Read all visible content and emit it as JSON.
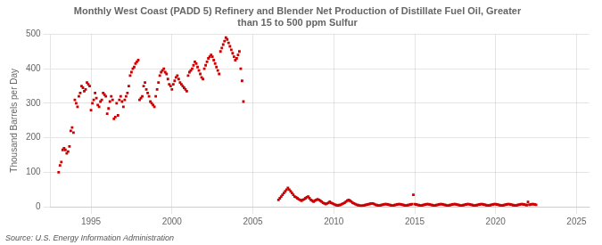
{
  "chart_data": {
    "type": "scatter",
    "title": "Monthly West Coast (PADD 5) Refinery and Blender Net Production of Distillate Fuel Oil, Greater\nthan 15 to 500 ppm Sulfur",
    "ylabel": "Thousand Barrels per Day",
    "source": "Source: U.S. Energy Information Administration",
    "xlim": [
      1992.5,
      2025.8
    ],
    "xticks": [
      1995,
      2000,
      2005,
      2010,
      2015,
      2020,
      2025
    ],
    "ylim": [
      0,
      500
    ],
    "yticks": [
      0,
      100,
      200,
      300,
      400,
      500
    ],
    "grid": true,
    "marker": "square",
    "series": [
      {
        "color": "#cc0000",
        "x": [
          1993,
          1993.0833,
          1993.1667,
          1993.25,
          1993.3333,
          1993.4167,
          1993.5,
          1993.5833,
          1993.6667,
          1993.75,
          1993.8333,
          1993.9167,
          1994,
          1994.0833,
          1994.1667,
          1994.25,
          1994.3333,
          1994.4167,
          1994.5,
          1994.5833,
          1994.6667,
          1994.75,
          1994.8333,
          1994.9167,
          1995,
          1995.0833,
          1995.1667,
          1995.25,
          1995.3333,
          1995.4167,
          1995.5,
          1995.5833,
          1995.6667,
          1995.75,
          1995.8333,
          1995.9167,
          1996,
          1996.0833,
          1996.1667,
          1996.25,
          1996.3333,
          1996.4167,
          1996.5,
          1996.5833,
          1996.6667,
          1996.75,
          1996.8333,
          1996.9167,
          1997,
          1997.0833,
          1997.1667,
          1997.25,
          1997.3333,
          1997.4167,
          1997.5,
          1997.5833,
          1997.6667,
          1997.75,
          1997.8333,
          1997.9167,
          1998,
          1998.0833,
          1998.1667,
          1998.25,
          1998.3333,
          1998.4167,
          1998.5,
          1998.5833,
          1998.6667,
          1998.75,
          1998.8333,
          1998.9167,
          1999,
          1999.0833,
          1999.1667,
          1999.25,
          1999.3333,
          1999.4167,
          1999.5,
          1999.5833,
          1999.6667,
          1999.75,
          1999.8333,
          1999.9167,
          2000,
          2000.0833,
          2000.1667,
          2000.25,
          2000.3333,
          2000.4167,
          2000.5,
          2000.5833,
          2000.6667,
          2000.75,
          2000.8333,
          2000.9167,
          2001,
          2001.0833,
          2001.1667,
          2001.25,
          2001.3333,
          2001.4167,
          2001.5,
          2001.5833,
          2001.6667,
          2001.75,
          2001.8333,
          2001.9167,
          2002,
          2002.0833,
          2002.1667,
          2002.25,
          2002.3333,
          2002.4167,
          2002.5,
          2002.5833,
          2002.6667,
          2002.75,
          2002.8333,
          2002.9167,
          2003,
          2003.0833,
          2003.1667,
          2003.25,
          2003.3333,
          2003.4167,
          2003.5,
          2003.5833,
          2003.6667,
          2003.75,
          2003.8333,
          2003.9167,
          2004,
          2004.0833,
          2004.1667,
          2004.25,
          2004.3333,
          2004.4167
        ],
        "values": [
          100,
          120,
          130,
          165,
          170,
          165,
          155,
          160,
          175,
          220,
          230,
          215,
          310,
          300,
          290,
          320,
          330,
          350,
          345,
          335,
          340,
          360,
          355,
          350,
          280,
          300,
          310,
          330,
          315,
          295,
          290,
          305,
          310,
          330,
          325,
          320,
          270,
          285,
          305,
          320,
          310,
          255,
          260,
          300,
          265,
          310,
          320,
          305,
          290,
          310,
          320,
          330,
          350,
          380,
          390,
          400,
          405,
          415,
          420,
          425,
          310,
          315,
          320,
          350,
          360,
          340,
          330,
          320,
          305,
          300,
          295,
          290,
          320,
          340,
          360,
          380,
          390,
          395,
          400,
          390,
          385,
          370,
          355,
          350,
          340,
          355,
          365,
          375,
          380,
          370,
          360,
          355,
          350,
          345,
          340,
          335,
          380,
          390,
          395,
          400,
          410,
          420,
          415,
          405,
          395,
          385,
          375,
          370,
          400,
          410,
          420,
          430,
          435,
          440,
          435,
          425,
          415,
          405,
          395,
          385,
          450,
          460,
          470,
          480,
          490,
          485,
          475,
          465,
          455,
          445,
          435,
          425,
          430,
          440,
          450,
          400,
          365,
          305
        ]
      },
      {
        "color": "#cc0000",
        "x": [
          2006.5833,
          2006.6667,
          2006.75,
          2006.8333,
          2006.9167,
          2007,
          2007.0833,
          2007.1667,
          2007.25,
          2007.3333,
          2007.4167,
          2007.5,
          2007.5833,
          2007.6667,
          2007.75,
          2007.8333,
          2007.9167,
          2008,
          2008.0833,
          2008.1667,
          2008.25,
          2008.3333,
          2008.4167,
          2008.5,
          2008.5833,
          2008.6667,
          2008.75,
          2008.8333,
          2008.9167,
          2009,
          2009.0833,
          2009.1667,
          2009.25,
          2009.3333,
          2009.4167,
          2009.5,
          2009.5833,
          2009.6667,
          2009.75,
          2009.8333,
          2009.9167,
          2010,
          2010.0833,
          2010.1667,
          2010.25,
          2010.3333,
          2010.4167,
          2010.5,
          2010.5833,
          2010.6667,
          2010.75,
          2010.8333,
          2010.9167,
          2011,
          2011.0833,
          2011.1667,
          2011.25,
          2011.3333,
          2011.4167,
          2011.5,
          2011.5833,
          2011.6667,
          2011.75,
          2011.8333,
          2011.9167,
          2012,
          2012.0833,
          2012.1667,
          2012.25,
          2012.3333,
          2012.4167,
          2012.5,
          2012.5833,
          2012.6667,
          2012.75,
          2012.8333,
          2012.9167,
          2013,
          2013.0833,
          2013.1667,
          2013.25,
          2013.3333,
          2013.4167,
          2013.5,
          2013.5833,
          2013.6667,
          2013.75,
          2013.8333,
          2013.9167,
          2014,
          2014.0833,
          2014.1667,
          2014.25,
          2014.3333,
          2014.4167,
          2014.5,
          2014.5833,
          2014.6667,
          2014.75,
          2014.8333,
          2014.9167,
          2015,
          2015.0833,
          2015.1667,
          2015.25,
          2015.3333,
          2015.4167,
          2015.5,
          2015.5833,
          2015.6667,
          2015.75,
          2015.8333,
          2015.9167,
          2016,
          2016.0833,
          2016.1667,
          2016.25,
          2016.3333,
          2016.4167,
          2016.5,
          2016.5833,
          2016.6667,
          2016.75,
          2016.8333,
          2016.9167,
          2017,
          2017.0833,
          2017.1667,
          2017.25,
          2017.3333,
          2017.4167,
          2017.5,
          2017.5833,
          2017.6667,
          2017.75,
          2017.8333,
          2017.9167,
          2018,
          2018.0833,
          2018.1667,
          2018.25,
          2018.3333,
          2018.4167,
          2018.5,
          2018.5833,
          2018.6667,
          2018.75,
          2018.8333,
          2018.9167,
          2019,
          2019.0833,
          2019.1667,
          2019.25,
          2019.3333,
          2019.4167,
          2019.5,
          2019.5833,
          2019.6667,
          2019.75,
          2019.8333,
          2019.9167,
          2020,
          2020.0833,
          2020.1667,
          2020.25,
          2020.3333,
          2020.4167,
          2020.5,
          2020.5833,
          2020.6667,
          2020.75,
          2020.8333,
          2020.9167,
          2021,
          2021.0833,
          2021.1667,
          2021.25,
          2021.3333,
          2021.4167,
          2021.5,
          2021.5833,
          2021.6667,
          2021.75,
          2021.8333,
          2021.9167,
          2022,
          2022.0833,
          2022.1667,
          2022.25,
          2022.3333,
          2022.4167,
          2022.5
        ],
        "values": [
          20,
          25,
          30,
          35,
          40,
          45,
          50,
          55,
          50,
          45,
          40,
          35,
          30,
          28,
          25,
          22,
          20,
          18,
          20,
          22,
          25,
          28,
          30,
          25,
          20,
          18,
          15,
          18,
          20,
          22,
          20,
          18,
          15,
          12,
          10,
          8,
          10,
          12,
          15,
          12,
          10,
          8,
          6,
          5,
          4,
          5,
          6,
          8,
          10,
          12,
          15,
          18,
          20,
          18,
          15,
          12,
          10,
          8,
          6,
          5,
          4,
          3,
          3,
          4,
          5,
          6,
          7,
          8,
          9,
          10,
          10,
          8,
          6,
          5,
          4,
          4,
          5,
          6,
          7,
          8,
          8,
          7,
          6,
          5,
          4,
          4,
          5,
          6,
          7,
          8,
          8,
          7,
          6,
          5,
          4,
          4,
          5,
          6,
          7,
          8,
          35,
          8,
          7,
          6,
          5,
          4,
          4,
          5,
          6,
          7,
          8,
          8,
          7,
          6,
          5,
          4,
          4,
          5,
          6,
          7,
          8,
          8,
          7,
          6,
          5,
          4,
          4,
          5,
          6,
          7,
          8,
          8,
          7,
          6,
          5,
          4,
          4,
          5,
          6,
          7,
          8,
          8,
          7,
          6,
          5,
          4,
          4,
          5,
          6,
          7,
          8,
          8,
          7,
          6,
          5,
          4,
          4,
          5,
          6,
          7,
          8,
          8,
          7,
          6,
          5,
          4,
          4,
          5,
          6,
          7,
          8,
          8,
          7,
          6,
          5,
          4,
          4,
          5,
          6,
          7,
          8,
          8,
          7,
          6,
          5,
          14,
          6,
          7,
          8,
          8,
          7,
          6
        ]
      }
    ]
  }
}
